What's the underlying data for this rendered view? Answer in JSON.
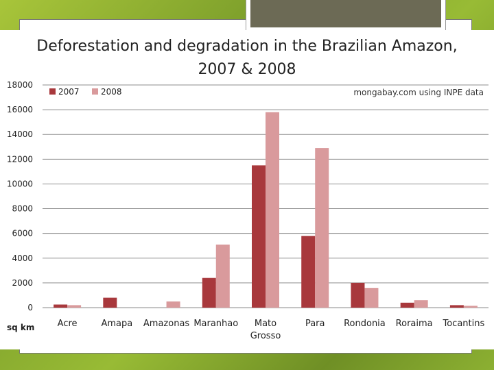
{
  "chart_data": {
    "type": "bar",
    "title_line1": "Deforestation and degradation in the Brazilian Amazon,",
    "title_line2": "2007 & 2008",
    "source_note": "mongabay.com using INPE data",
    "ylabel": "sq km",
    "categories": [
      "Acre",
      "Amapa",
      "Amazonas",
      "Maranhao",
      "Mato Grosso",
      "Para",
      "Rondonia",
      "Roraima",
      "Tocantins"
    ],
    "category_lines": [
      [
        "Acre"
      ],
      [
        "Amapa"
      ],
      [
        "Amazonas"
      ],
      [
        "Maranhao"
      ],
      [
        "Mato",
        "Grosso"
      ],
      [
        "Para"
      ],
      [
        "Rondonia"
      ],
      [
        "Roraima"
      ],
      [
        "Tocantins"
      ]
    ],
    "series": [
      {
        "name": "2007",
        "color": "#a8383c",
        "values": [
          250,
          800,
          0,
          2400,
          11500,
          5800,
          2000,
          400,
          200
        ]
      },
      {
        "name": "2008",
        "color": "#d99a9c",
        "values": [
          200,
          0,
          500,
          5100,
          15800,
          12900,
          1600,
          600,
          150
        ]
      }
    ],
    "ylim": [
      0,
      18000
    ],
    "yticks": [
      0,
      2000,
      4000,
      6000,
      8000,
      10000,
      12000,
      14000,
      16000,
      18000
    ],
    "grid": true,
    "legend": "top-left"
  }
}
